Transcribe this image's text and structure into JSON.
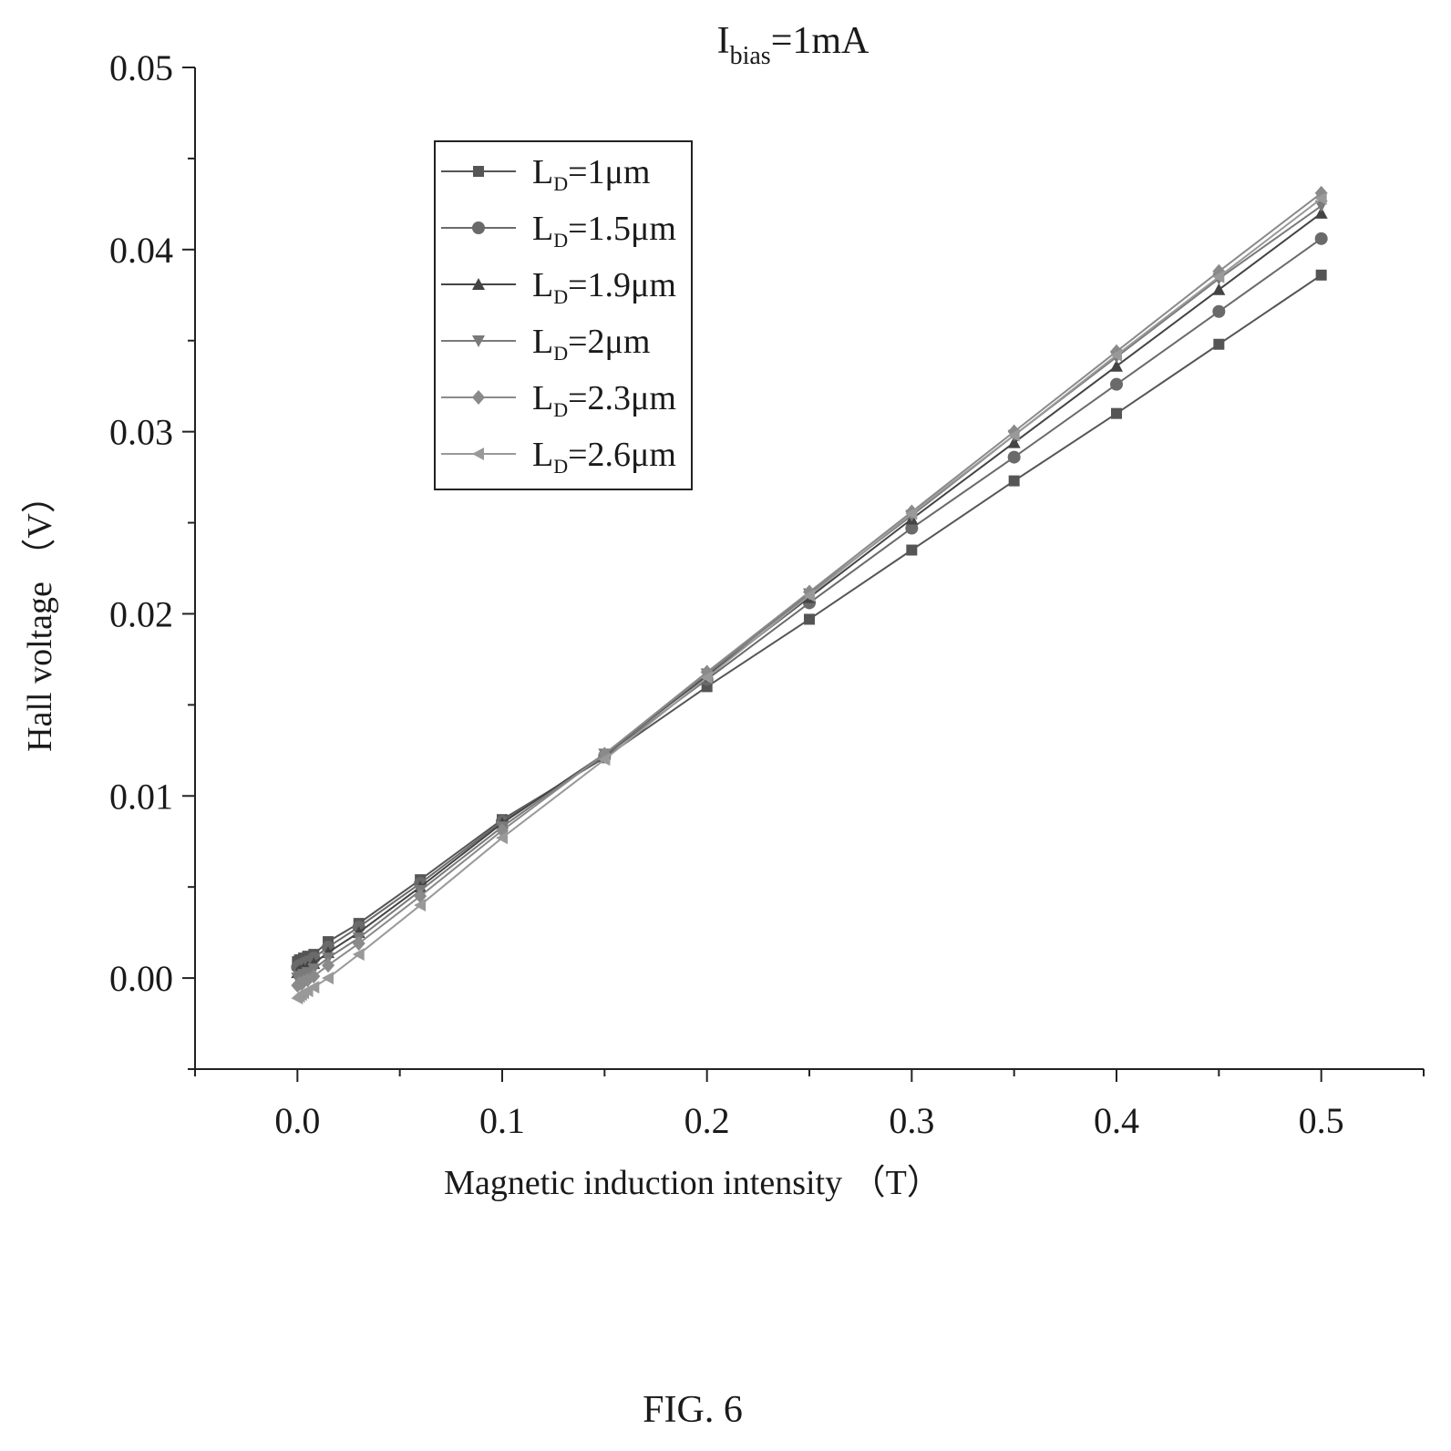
{
  "chart_data": {
    "type": "line",
    "title_main": "I",
    "title_sub": "bias",
    "title_tail": "=1mA",
    "xlabel": "Magnetic induction intensity （T）",
    "ylabel": "Hall voltage （V）",
    "xlim": [
      -0.05,
      0.55
    ],
    "ylim": [
      -0.005,
      0.05
    ],
    "x_ticks": [
      0.0,
      0.1,
      0.2,
      0.3,
      0.4,
      0.5
    ],
    "x_tick_labels": [
      "0.0",
      "0.1",
      "0.2",
      "0.3",
      "0.4",
      "0.5"
    ],
    "y_ticks": [
      0.0,
      0.01,
      0.02,
      0.03,
      0.04,
      0.05
    ],
    "y_tick_labels": [
      "0.00",
      "0.01",
      "0.02",
      "0.03",
      "0.04",
      "0.05"
    ],
    "grid": false,
    "legend_position": "top-left",
    "x": [
      0,
      0.001,
      0.002,
      0.003,
      0.005,
      0.008,
      0.015,
      0.03,
      0.06,
      0.1,
      0.15,
      0.2,
      0.25,
      0.3,
      0.35,
      0.4,
      0.45,
      0.5
    ],
    "series": [
      {
        "name_main": "L",
        "name_sub": "D",
        "name_tail": "=1μm",
        "marker": "square",
        "color": "#555555",
        "values": [
          0.0009,
          0.001,
          0.001,
          0.0011,
          0.0012,
          0.0013,
          0.002,
          0.003,
          0.0054,
          0.0087,
          0.0121,
          0.016,
          0.0197,
          0.0235,
          0.0273,
          0.031,
          0.0348,
          0.0386
        ]
      },
      {
        "name_main": "L",
        "name_sub": "D",
        "name_tail": "=1.5μm",
        "marker": "circle",
        "color": "#6a6a6a",
        "values": [
          0.0006,
          0.0007,
          0.0007,
          0.0008,
          0.0009,
          0.0011,
          0.0017,
          0.0028,
          0.0052,
          0.0086,
          0.0122,
          0.0164,
          0.0206,
          0.0247,
          0.0286,
          0.0326,
          0.0366,
          0.0406
        ]
      },
      {
        "name_main": "L",
        "name_sub": "D",
        "name_tail": "=1.9μm",
        "marker": "triangle-up",
        "color": "#444444",
        "values": [
          0.0003,
          0.0004,
          0.0004,
          0.0005,
          0.0006,
          0.0008,
          0.0014,
          0.0025,
          0.005,
          0.0085,
          0.0123,
          0.0166,
          0.0209,
          0.0252,
          0.0294,
          0.0336,
          0.0378,
          0.042
        ]
      },
      {
        "name_main": "L",
        "name_sub": "D",
        "name_tail": "=2μm",
        "marker": "triangle-down",
        "color": "#7a7a7a",
        "values": [
          0.0,
          0.0001,
          0.0001,
          0.0002,
          0.0003,
          0.0005,
          0.0011,
          0.0022,
          0.0048,
          0.0083,
          0.0123,
          0.0167,
          0.0211,
          0.0254,
          0.0298,
          0.0341,
          0.0384,
          0.0424
        ]
      },
      {
        "name_main": "L",
        "name_sub": "D",
        "name_tail": "=2.3μm",
        "marker": "diamond",
        "color": "#8a8a8a",
        "values": [
          -0.0004,
          -0.0003,
          -0.0003,
          -0.0002,
          -0.0001,
          0.0001,
          0.0007,
          0.0019,
          0.0045,
          0.0081,
          0.0123,
          0.0168,
          0.0212,
          0.0256,
          0.03,
          0.0344,
          0.0388,
          0.0431
        ]
      },
      {
        "name_main": "L",
        "name_sub": "D",
        "name_tail": "=2.6μm",
        "marker": "triangle-left",
        "color": "#999999",
        "values": [
          -0.0011,
          -0.001,
          -0.0009,
          -0.0008,
          -0.0007,
          -0.0005,
          0.0,
          0.0013,
          0.004,
          0.0077,
          0.012,
          0.0165,
          0.021,
          0.0255,
          0.0298,
          0.0342,
          0.0385,
          0.0428
        ]
      }
    ]
  },
  "caption": "FIG. 6"
}
